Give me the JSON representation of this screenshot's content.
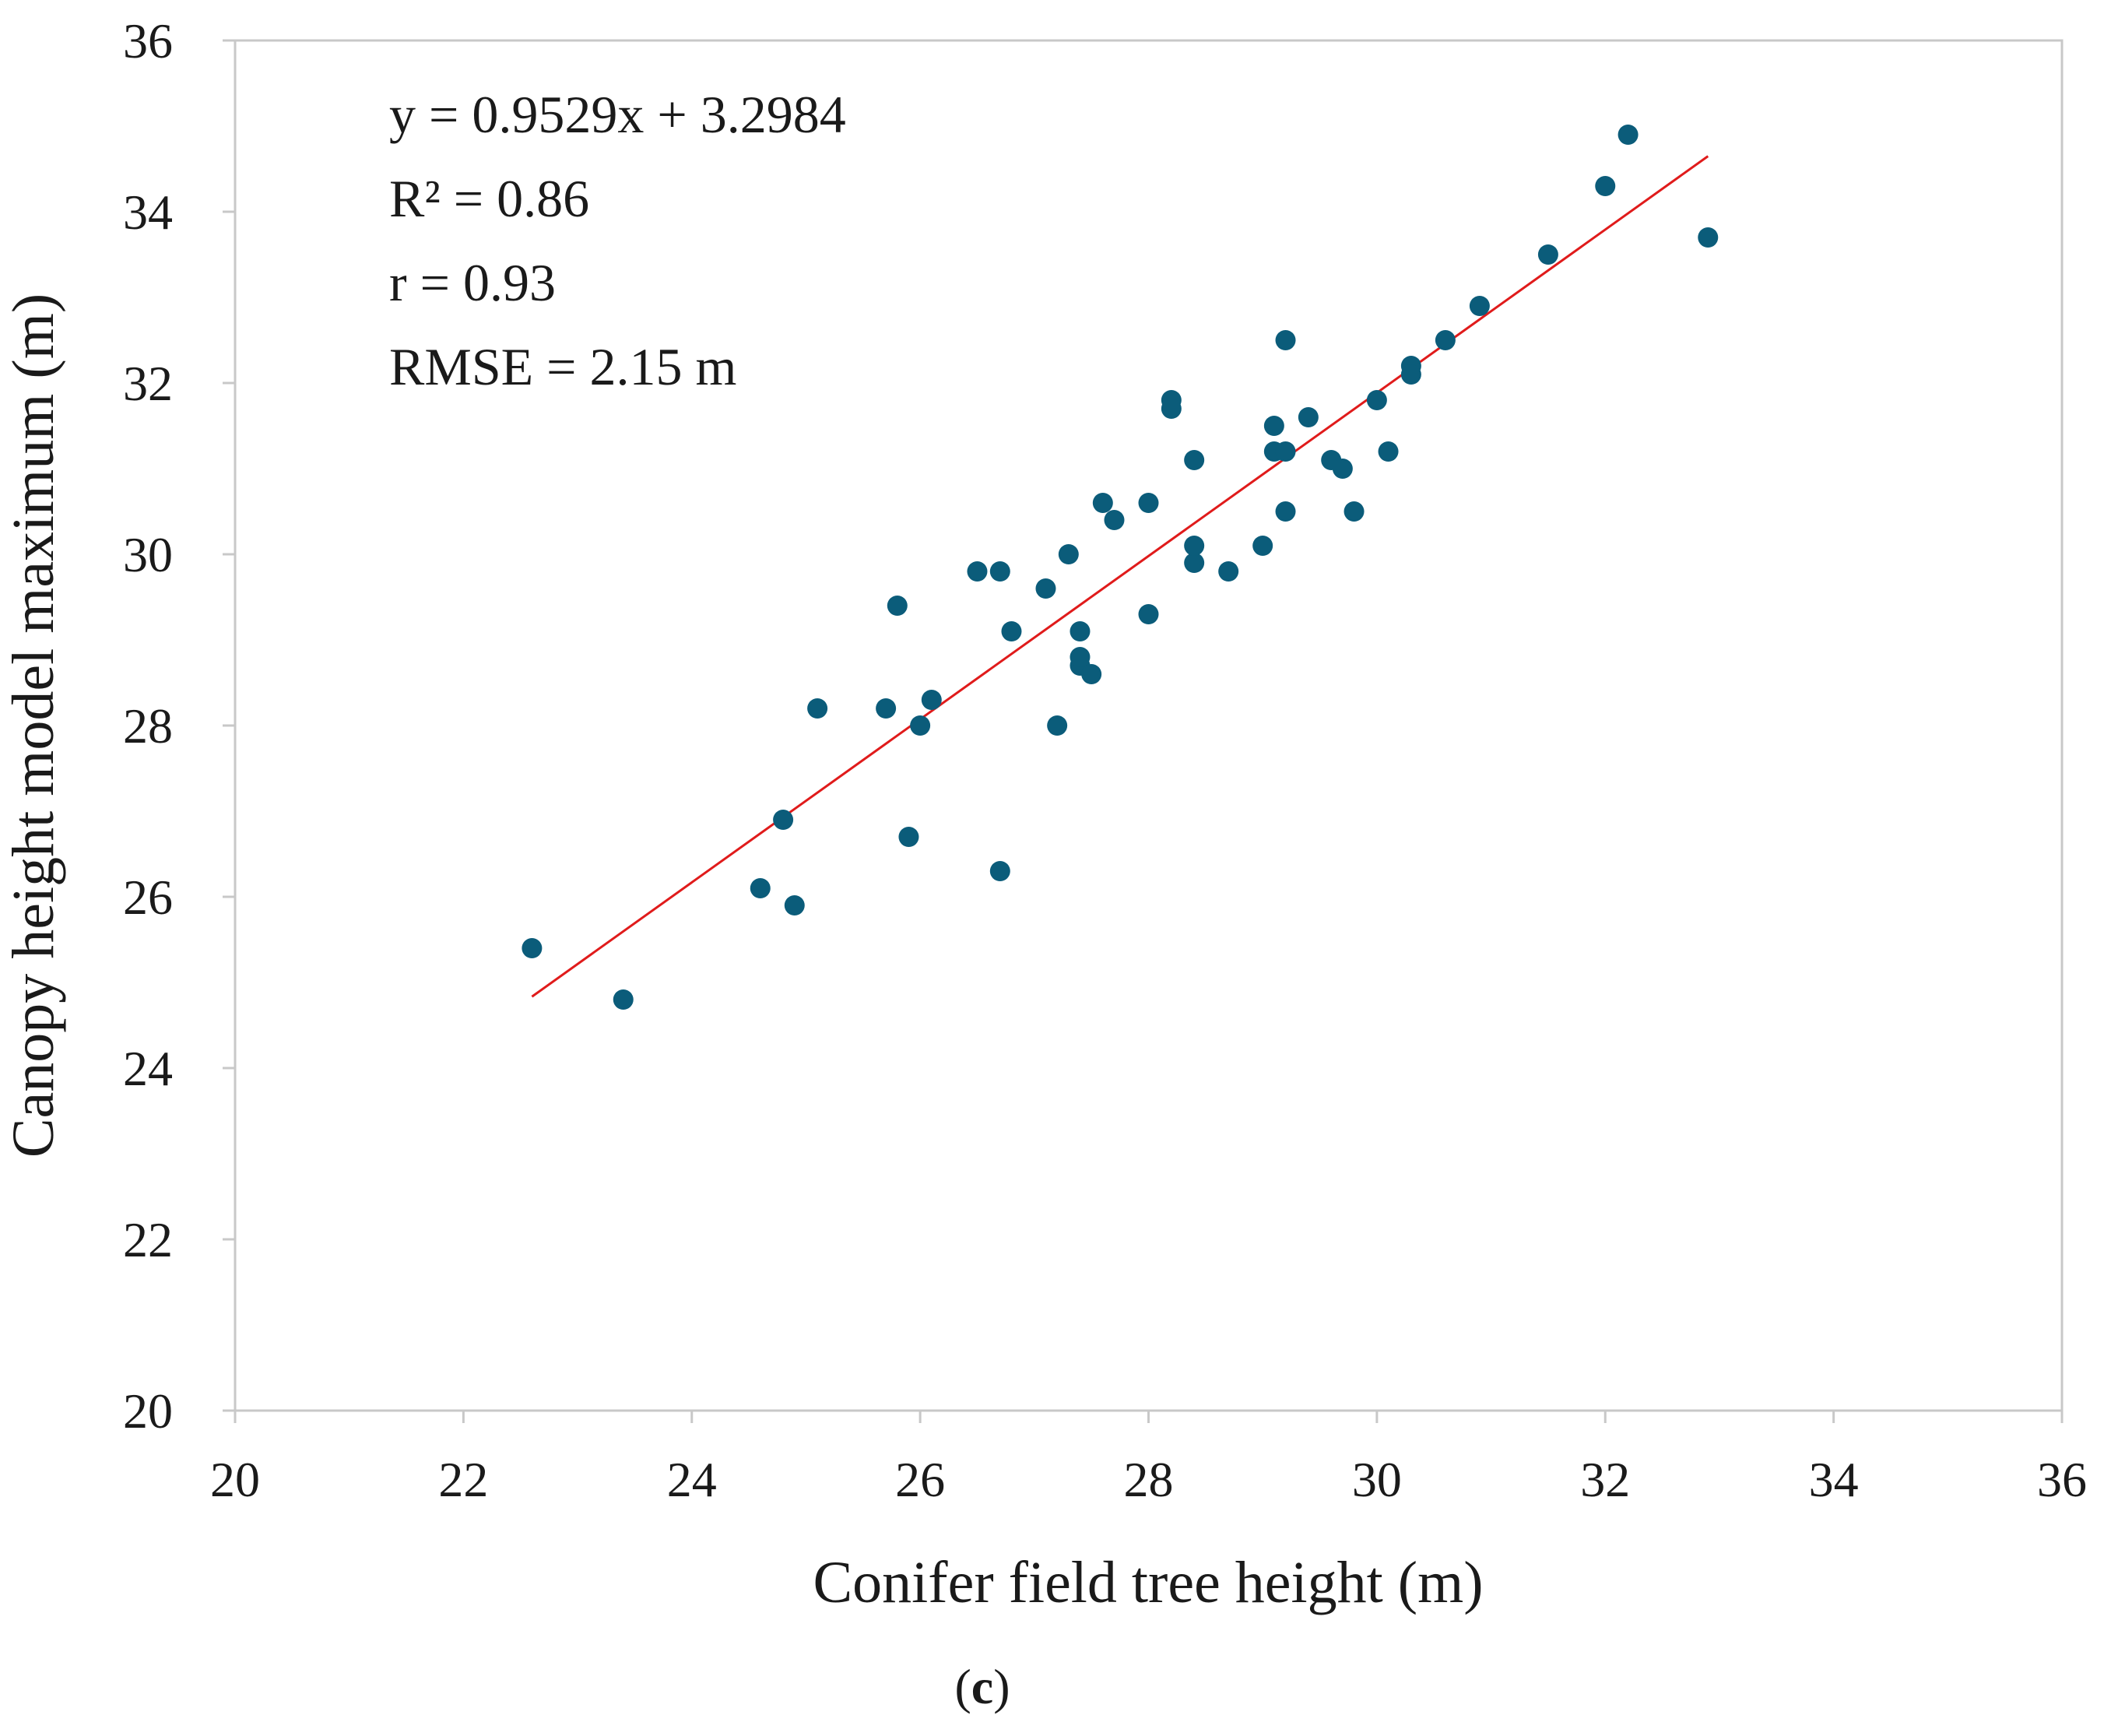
{
  "chart_data": {
    "type": "scatter",
    "title": "",
    "xlabel": "Conifer field tree height (m)",
    "ylabel": "Canopy height model maximum (m)",
    "xlim": [
      20,
      36
    ],
    "ylim": [
      20,
      36
    ],
    "xticks": [
      "20",
      "22",
      "24",
      "26",
      "28",
      "30",
      "32",
      "34",
      "36"
    ],
    "yticks": [
      "20",
      "22",
      "24",
      "26",
      "28",
      "30",
      "32",
      "34",
      "36"
    ],
    "grid": false,
    "legend": "none",
    "point_color": "#0b5c7a",
    "trendline": {
      "slope": 0.9529,
      "intercept": 3.2984,
      "x_range": [
        22.6,
        32.9
      ],
      "color": "#e01b1b"
    },
    "annotations": {
      "equation": "y = 0.9529x + 3.2984",
      "r2": "R² = 0.86",
      "r": "r = 0.93",
      "rmse": "RMSE = 2.15 m"
    },
    "series": [
      {
        "name": "Conifer",
        "points": [
          [
            22.6,
            25.4
          ],
          [
            23.4,
            24.8
          ],
          [
            24.6,
            26.1
          ],
          [
            24.8,
            26.9
          ],
          [
            24.9,
            25.9
          ],
          [
            25.1,
            28.2
          ],
          [
            25.7,
            28.2
          ],
          [
            25.8,
            29.4
          ],
          [
            25.9,
            26.7
          ],
          [
            26.0,
            28.0
          ],
          [
            26.1,
            28.3
          ],
          [
            26.5,
            29.8
          ],
          [
            26.7,
            29.8
          ],
          [
            26.7,
            26.3
          ],
          [
            26.8,
            29.1
          ],
          [
            27.1,
            29.6
          ],
          [
            27.2,
            28.0
          ],
          [
            27.3,
            30.0
          ],
          [
            27.4,
            29.1
          ],
          [
            27.4,
            28.7
          ],
          [
            27.4,
            28.8
          ],
          [
            27.5,
            28.6
          ],
          [
            27.6,
            30.6
          ],
          [
            27.7,
            30.4
          ],
          [
            28.0,
            30.6
          ],
          [
            28.0,
            29.3
          ],
          [
            28.2,
            31.8
          ],
          [
            28.2,
            31.7
          ],
          [
            28.4,
            31.1
          ],
          [
            28.4,
            29.9
          ],
          [
            28.4,
            30.1
          ],
          [
            28.7,
            29.8
          ],
          [
            29.0,
            30.1
          ],
          [
            29.1,
            31.5
          ],
          [
            29.1,
            31.2
          ],
          [
            29.2,
            32.5
          ],
          [
            29.2,
            31.2
          ],
          [
            29.2,
            30.5
          ],
          [
            29.4,
            31.6
          ],
          [
            29.6,
            31.1
          ],
          [
            29.7,
            31.0
          ],
          [
            29.8,
            30.5
          ],
          [
            30.0,
            31.8
          ],
          [
            30.1,
            31.2
          ],
          [
            30.3,
            32.2
          ],
          [
            30.3,
            32.1
          ],
          [
            30.6,
            32.5
          ],
          [
            30.9,
            32.9
          ],
          [
            31.5,
            33.5
          ],
          [
            32.0,
            34.3
          ],
          [
            32.2,
            34.9
          ],
          [
            32.9,
            33.7
          ]
        ]
      }
    ]
  },
  "panel": {
    "open": "(",
    "letter": "c",
    "close": ")"
  }
}
